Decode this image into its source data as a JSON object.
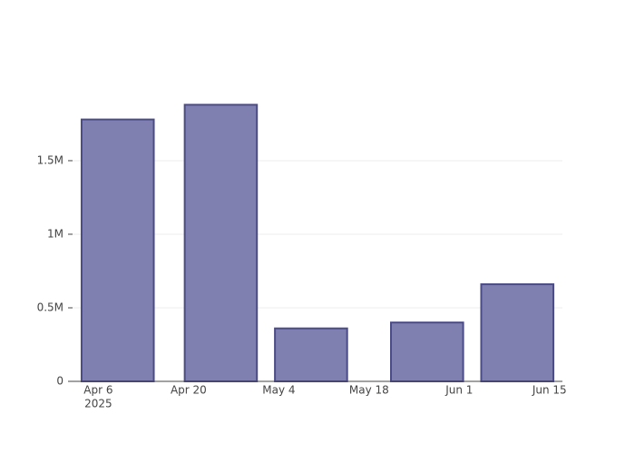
{
  "chart_data": {
    "type": "bar",
    "x": [
      "2025-04-09",
      "2025-04-25",
      "2025-05-09",
      "2025-05-27",
      "2025-06-10"
    ],
    "values": [
      1780000,
      1880000,
      360000,
      400000,
      660000
    ],
    "color": "#8080b0",
    "edge_color": "#4b4b88",
    "xlim": [
      "2025-04-02",
      "2025-06-17"
    ],
    "xticks": [
      {
        "value": "2025-04-06",
        "label": "Apr 6",
        "sublabel": "2025"
      },
      {
        "value": "2025-04-20",
        "label": "Apr 20"
      },
      {
        "value": "2025-05-04",
        "label": "May 4"
      },
      {
        "value": "2025-05-18",
        "label": "May 18"
      },
      {
        "value": "2025-06-01",
        "label": "Jun 1"
      },
      {
        "value": "2025-06-15",
        "label": "Jun 15"
      }
    ],
    "ylim": [
      0,
      1975000
    ],
    "yticks": [
      0,
      {
        "value": 500000,
        "label": "0.5M"
      },
      {
        "value": 1000000,
        "label": "1M"
      },
      {
        "value": 1500000,
        "label": "1.5M"
      }
    ],
    "grid": true
  }
}
